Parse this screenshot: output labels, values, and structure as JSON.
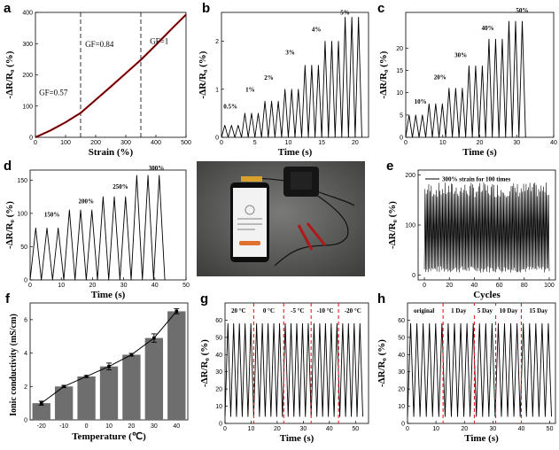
{
  "colors": {
    "line": "#000000",
    "fit": "#d01010",
    "bar": "#6e6e6e",
    "dash_red": "#e32020",
    "error": "#000000"
  },
  "chart_data": [
    {
      "id": "a",
      "panel_label": "a",
      "type": "line",
      "xlabel": "Strain (%)",
      "ylabel": "-ΔR/R₀ (%)",
      "xlim": [
        0,
        500
      ],
      "ylim": [
        0,
        400
      ],
      "xticks": [
        0,
        100,
        200,
        300,
        400,
        500
      ],
      "yticks": [
        0,
        100,
        200,
        300,
        400
      ],
      "x": [
        0,
        50,
        100,
        150,
        200,
        250,
        300,
        350,
        400,
        450,
        500
      ],
      "y": [
        0,
        22,
        48,
        78,
        120,
        162,
        205,
        248,
        296,
        345,
        393
      ],
      "vlines": [
        150,
        350
      ],
      "annotations": [
        {
          "text": "GF=0.57",
          "x": 12,
          "y": 135
        },
        {
          "text": "GF=0.84",
          "x": 165,
          "y": 290
        },
        {
          "text": "GF=1",
          "x": 380,
          "y": 300
        }
      ]
    },
    {
      "id": "b",
      "panel_label": "b",
      "type": "line",
      "xlabel": "Time (s)",
      "ylabel": "-ΔR/R₀ (%)",
      "xlim": [
        0,
        22
      ],
      "ylim": [
        0,
        2.6
      ],
      "xticks": [
        0,
        5,
        10,
        15,
        20
      ],
      "yticks": [
        0,
        1,
        2
      ],
      "period": 1.0,
      "cycles_per_level": 3,
      "levels": [
        0.25,
        0.5,
        0.75,
        1.0,
        1.5,
        2.0,
        2.5
      ],
      "annotations": [
        {
          "text": "0.5%",
          "x": 0.3,
          "y": 0.6
        },
        {
          "text": "1%",
          "x": 3.6,
          "y": 0.95
        },
        {
          "text": "2%",
          "x": 6.4,
          "y": 1.2
        },
        {
          "text": "3%",
          "x": 9.6,
          "y": 1.72
        },
        {
          "text": "4%",
          "x": 13.5,
          "y": 2.2
        },
        {
          "text": "5%",
          "x": 17.8,
          "y": 2.55
        }
      ]
    },
    {
      "id": "c",
      "panel_label": "c",
      "type": "line",
      "xlabel": "Time (s)",
      "ylabel": "-ΔR/R₀ (%)",
      "xlim": [
        0,
        40
      ],
      "ylim": [
        0,
        28
      ],
      "xticks": [
        0,
        10,
        20,
        30,
        40
      ],
      "yticks": [
        0,
        5,
        10,
        15,
        20
      ],
      "period": 1.8,
      "cycles_per_level": 3,
      "levels": [
        5,
        7.5,
        11,
        16,
        22,
        26
      ],
      "annotations": [
        {
          "text": "10%",
          "x": 2.3,
          "y": 7.5
        },
        {
          "text": "20%",
          "x": 7.6,
          "y": 13
        },
        {
          "text": "30%",
          "x": 13.2,
          "y": 18
        },
        {
          "text": "40%",
          "x": 20.5,
          "y": 24
        },
        {
          "text": "50%",
          "x": 29.8,
          "y": 28
        }
      ]
    },
    {
      "id": "d",
      "panel_label": "d",
      "type": "line",
      "xlabel": "Time (s)",
      "ylabel": "-ΔR/R₀ (%)",
      "xlim": [
        0,
        50
      ],
      "ylim": [
        0,
        165
      ],
      "xticks": [
        0,
        10,
        20,
        30,
        40,
        50
      ],
      "yticks": [
        0,
        50,
        100,
        150
      ],
      "period": 3.6,
      "cycles_per_level": 3,
      "levels": [
        78,
        105,
        125,
        157
      ],
      "annotations": [
        {
          "text": "150%",
          "x": 4.5,
          "y": 95
        },
        {
          "text": "200%",
          "x": 15.5,
          "y": 115
        },
        {
          "text": "250%",
          "x": 26.5,
          "y": 137
        },
        {
          "text": "300%",
          "x": 38,
          "y": 165
        }
      ]
    },
    {
      "id": "e",
      "panel_label": "e",
      "type": "line",
      "xlabel": "Cycles",
      "ylabel": "-ΔR/R₀ (%)",
      "xlim": [
        -5,
        105
      ],
      "ylim": [
        -10,
        210
      ],
      "xticks": [
        0,
        20,
        40,
        60,
        80,
        100
      ],
      "yticks": [
        0,
        100,
        200
      ],
      "cycles": 100,
      "peak_range": [
        155,
        185
      ],
      "valley_range": [
        5,
        18
      ],
      "legend": "300% strain for 100 times"
    },
    {
      "id": "f",
      "panel_label": "f",
      "type": "bar",
      "xlabel": "Temperature (℃)",
      "ylabel": "Ionic conductivity (mS/cm)",
      "categories": [
        "-20",
        "-10",
        "0",
        "10",
        "20",
        "30",
        "40"
      ],
      "values": [
        1.0,
        2.0,
        2.6,
        3.2,
        3.9,
        4.9,
        6.5
      ],
      "errors": [
        0.12,
        0.06,
        0.05,
        0.2,
        0.08,
        0.25,
        0.15
      ],
      "ylim": [
        0,
        7
      ],
      "yticks": [
        0,
        2,
        4,
        6
      ]
    },
    {
      "id": "g",
      "panel_label": "g",
      "type": "line",
      "xlabel": "Time (s)",
      "ylabel": "-ΔR/R₀ (%)",
      "xlim": [
        0,
        55
      ],
      "ylim": [
        0,
        70
      ],
      "xticks": [
        0,
        10,
        20,
        30,
        40,
        50
      ],
      "yticks": [
        0,
        10,
        20,
        30,
        40,
        50,
        60
      ],
      "period": 2.2,
      "peak": 58,
      "valley": 4,
      "vlines": [
        11,
        22.5,
        33,
        43.5
      ],
      "segment_labels": [
        {
          "text": "20 °C",
          "x": 5.2
        },
        {
          "text": "0 °C",
          "x": 16.8
        },
        {
          "text": "-5 °C",
          "x": 27.8
        },
        {
          "text": "-10 °C",
          "x": 38.4
        },
        {
          "text": "-20 °C",
          "x": 49
        }
      ]
    },
    {
      "id": "h",
      "panel_label": "h",
      "type": "line",
      "xlabel": "Time (s)",
      "ylabel": "-ΔR/R₀ (%)",
      "xlim": [
        0,
        52
      ],
      "ylim": [
        0,
        70
      ],
      "xticks": [
        0,
        10,
        20,
        30,
        40,
        50
      ],
      "yticks": [
        0,
        10,
        20,
        30,
        40,
        50,
        60
      ],
      "period": 2.2,
      "peak": 58,
      "valley": 4,
      "vlines": [
        12.5,
        23.5,
        31,
        40
      ],
      "segment_labels": [
        {
          "text": "original",
          "x": 5.8
        },
        {
          "text": "1 Day",
          "x": 18
        },
        {
          "text": "5 Day",
          "x": 27.2
        },
        {
          "text": "10 Day",
          "x": 35.5
        },
        {
          "text": "15 Day",
          "x": 46
        }
      ]
    }
  ]
}
